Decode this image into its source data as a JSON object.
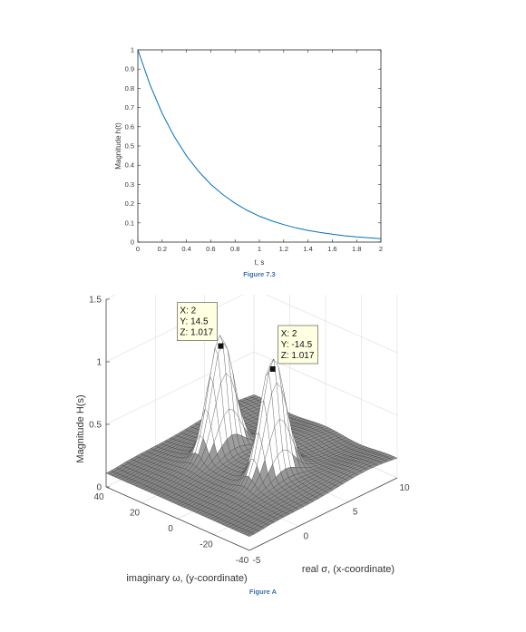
{
  "chart_data": [
    {
      "type": "line",
      "caption": "Figure 7.3",
      "xlabel": "t, s",
      "ylabel": "Magnitude h(t)",
      "xlim": [
        0,
        2
      ],
      "ylim": [
        0,
        1
      ],
      "xticks": [
        "0",
        "0.2",
        "0.4",
        "0.6",
        "0.8",
        "1",
        "1.2",
        "1.4",
        "1.6",
        "1.8",
        "2"
      ],
      "yticks": [
        "0",
        "0.1",
        "0.2",
        "0.3",
        "0.4",
        "0.5",
        "0.6",
        "0.7",
        "0.8",
        "0.9",
        "1"
      ],
      "series": [
        {
          "color": "#0072bd",
          "x": [
            0,
            0.1,
            0.2,
            0.3,
            0.4,
            0.5,
            0.6,
            0.7,
            0.8,
            0.9,
            1.0,
            1.1,
            1.2,
            1.3,
            1.4,
            1.5,
            1.6,
            1.7,
            1.8,
            1.9,
            2.0
          ],
          "y": [
            1.0,
            0.819,
            0.67,
            0.549,
            0.449,
            0.368,
            0.301,
            0.247,
            0.202,
            0.165,
            0.135,
            0.111,
            0.091,
            0.074,
            0.061,
            0.05,
            0.041,
            0.033,
            0.027,
            0.022,
            0.018
          ]
        }
      ]
    },
    {
      "type": "surface3d",
      "caption": "Figure  A",
      "xlabel": "real σ, (x-coordinate)",
      "ylabel": "imaginary ω, (y-coordinate)",
      "zlabel": "Magnitude H(s)",
      "xlim": [
        -5,
        10
      ],
      "ylim": [
        -40,
        40
      ],
      "zlim": [
        0,
        1.5
      ],
      "xticks": [
        "-5",
        "0",
        "5",
        "10"
      ],
      "yticks": [
        "-40",
        "-20",
        "0",
        "20",
        "40"
      ],
      "zticks": [
        "0",
        "0.5",
        "1",
        "1.5"
      ],
      "peaks": [
        {
          "x": 2,
          "y": 14.5,
          "z": 1.017
        },
        {
          "x": 2,
          "y": -14.5,
          "z": 1.017
        }
      ],
      "datatips": [
        {
          "x": "X: 2",
          "y": "Y: 14.5",
          "z": "Z: 1.017"
        },
        {
          "x": "X: 2",
          "y": "Y: -14.5",
          "z": "Z: 1.017"
        }
      ]
    }
  ]
}
